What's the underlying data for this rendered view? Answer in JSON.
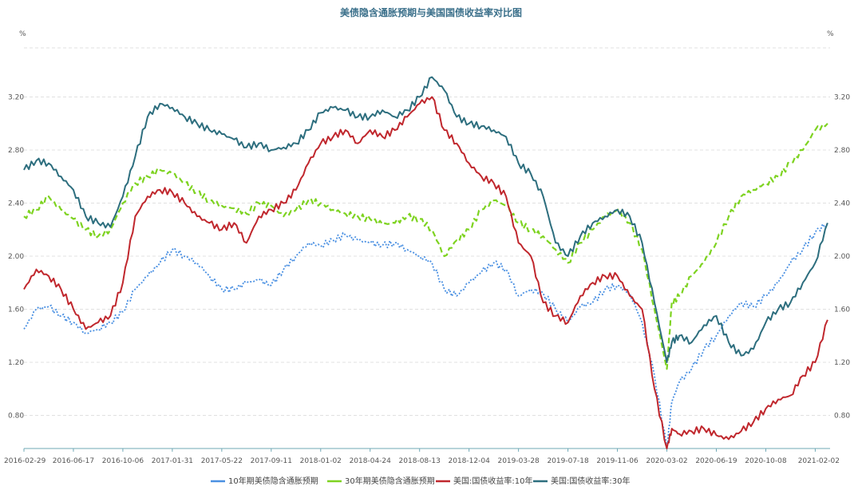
{
  "chart_data": {
    "type": "line",
    "title": "美债隐含通胀预期与美国国债收益率对比图",
    "y_unit_left": "%",
    "y_unit_right": "%",
    "ylim": [
      0.55,
      3.6
    ],
    "yticks": [
      0.8,
      1.2,
      1.6,
      2.0,
      2.4,
      2.8,
      3.2
    ],
    "ytick_labels": [
      "0.80",
      "1.20",
      "1.60",
      "2.00",
      "2.40",
      "2.80",
      "3.20"
    ],
    "x_ticks": [
      "2016-02-29",
      "2016-06-17",
      "2016-10-06",
      "2017-01-31",
      "2017-05-22",
      "2017-09-11",
      "2018-01-02",
      "2018-04-24",
      "2018-08-13",
      "2018-12-04",
      "2019-03-28",
      "2019-07-18",
      "2019-11-06",
      "2020-03-02",
      "2020-06-19",
      "2020-10-08",
      "2021-02-02"
    ],
    "grid": "horizontal-dashed",
    "legend_position": "bottom",
    "x_domain": [
      0,
      16.3
    ],
    "series": [
      {
        "name": "10年期美债隐含通胀预期",
        "color": "#4a90e2",
        "style": "dotted",
        "x": [
          0,
          0.25,
          0.5,
          0.75,
          1.0,
          1.25,
          1.5,
          1.75,
          2.0,
          2.25,
          2.5,
          2.75,
          3.0,
          3.25,
          3.5,
          3.75,
          4.0,
          4.25,
          4.5,
          4.75,
          5.0,
          5.25,
          5.5,
          5.75,
          6.0,
          6.25,
          6.5,
          6.75,
          7.0,
          7.25,
          7.5,
          7.75,
          8.0,
          8.25,
          8.5,
          8.75,
          9.0,
          9.25,
          9.5,
          9.75,
          10.0,
          10.25,
          10.5,
          10.75,
          11.0,
          11.25,
          11.5,
          11.75,
          12.0,
          12.25,
          12.5,
          12.75,
          13.0,
          13.1,
          13.25,
          13.5,
          13.75,
          14.0,
          14.25,
          14.5,
          14.75,
          15.0,
          15.25,
          15.5,
          15.75,
          16.0,
          16.25
        ],
        "values": [
          1.45,
          1.6,
          1.62,
          1.55,
          1.5,
          1.42,
          1.45,
          1.5,
          1.58,
          1.75,
          1.85,
          1.95,
          2.05,
          2.0,
          1.95,
          1.85,
          1.75,
          1.75,
          1.8,
          1.82,
          1.78,
          1.9,
          2.0,
          2.1,
          2.08,
          2.12,
          2.16,
          2.12,
          2.1,
          2.08,
          2.1,
          2.05,
          2.0,
          1.95,
          1.75,
          1.7,
          1.8,
          1.88,
          1.95,
          1.9,
          1.7,
          1.75,
          1.72,
          1.6,
          1.5,
          1.62,
          1.65,
          1.75,
          1.78,
          1.72,
          1.5,
          1.1,
          0.55,
          0.9,
          1.05,
          1.15,
          1.3,
          1.4,
          1.55,
          1.65,
          1.62,
          1.7,
          1.8,
          1.95,
          2.05,
          2.18,
          2.25
        ]
      },
      {
        "name": "30年期美债隐含通胀预期",
        "color": "#7ed321",
        "style": "dashed",
        "x": [
          0,
          0.25,
          0.5,
          0.75,
          1.0,
          1.25,
          1.5,
          1.75,
          2.0,
          2.25,
          2.5,
          2.75,
          3.0,
          3.25,
          3.5,
          3.75,
          4.0,
          4.25,
          4.5,
          4.75,
          5.0,
          5.25,
          5.5,
          5.75,
          6.0,
          6.25,
          6.5,
          6.75,
          7.0,
          7.25,
          7.5,
          7.75,
          8.0,
          8.25,
          8.5,
          8.75,
          9.0,
          9.25,
          9.5,
          9.75,
          10.0,
          10.25,
          10.5,
          10.75,
          11.0,
          11.25,
          11.5,
          11.75,
          12.0,
          12.25,
          12.5,
          12.75,
          13.0,
          13.1,
          13.25,
          13.5,
          13.75,
          14.0,
          14.25,
          14.5,
          14.75,
          15.0,
          15.25,
          15.5,
          15.75,
          16.0,
          16.25
        ],
        "values": [
          2.3,
          2.35,
          2.45,
          2.35,
          2.28,
          2.2,
          2.15,
          2.2,
          2.4,
          2.55,
          2.6,
          2.65,
          2.62,
          2.55,
          2.48,
          2.42,
          2.38,
          2.36,
          2.32,
          2.4,
          2.38,
          2.3,
          2.35,
          2.42,
          2.4,
          2.35,
          2.32,
          2.3,
          2.28,
          2.24,
          2.25,
          2.3,
          2.28,
          2.2,
          2.0,
          2.12,
          2.2,
          2.35,
          2.42,
          2.38,
          2.25,
          2.2,
          2.15,
          2.05,
          1.95,
          2.1,
          2.2,
          2.3,
          2.35,
          2.25,
          2.05,
          1.6,
          1.15,
          1.65,
          1.7,
          1.85,
          1.95,
          2.1,
          2.3,
          2.45,
          2.5,
          2.55,
          2.6,
          2.7,
          2.8,
          2.95,
          3.0
        ]
      },
      {
        "name": "美国:国债收益率:10年",
        "color": "#c0272d",
        "style": "solid",
        "x": [
          0,
          0.25,
          0.5,
          0.75,
          1.0,
          1.25,
          1.5,
          1.75,
          2.0,
          2.25,
          2.5,
          2.75,
          3.0,
          3.25,
          3.5,
          3.75,
          4.0,
          4.25,
          4.5,
          4.75,
          5.0,
          5.25,
          5.5,
          5.75,
          6.0,
          6.25,
          6.5,
          6.75,
          7.0,
          7.25,
          7.5,
          7.75,
          8.0,
          8.25,
          8.5,
          8.75,
          9.0,
          9.25,
          9.5,
          9.75,
          10.0,
          10.25,
          10.5,
          10.75,
          11.0,
          11.25,
          11.5,
          11.75,
          12.0,
          12.25,
          12.5,
          12.75,
          13.0,
          13.1,
          13.25,
          13.5,
          13.75,
          14.0,
          14.25,
          14.5,
          14.75,
          15.0,
          15.25,
          15.5,
          15.75,
          16.0,
          16.25
        ],
        "values": [
          1.75,
          1.9,
          1.85,
          1.75,
          1.6,
          1.45,
          1.5,
          1.55,
          1.8,
          2.3,
          2.45,
          2.5,
          2.48,
          2.4,
          2.3,
          2.25,
          2.2,
          2.25,
          2.1,
          2.3,
          2.35,
          2.4,
          2.5,
          2.7,
          2.85,
          2.9,
          2.95,
          2.85,
          2.95,
          2.9,
          2.95,
          3.05,
          3.15,
          3.2,
          2.95,
          2.85,
          2.7,
          2.6,
          2.55,
          2.45,
          2.1,
          2.0,
          1.65,
          1.55,
          1.5,
          1.7,
          1.8,
          1.85,
          1.85,
          1.7,
          1.6,
          1.0,
          0.55,
          0.7,
          0.66,
          0.68,
          0.7,
          0.65,
          0.62,
          0.68,
          0.75,
          0.85,
          0.92,
          0.95,
          1.1,
          1.2,
          1.52
        ]
      },
      {
        "name": "美国:国债收益率:30年",
        "color": "#2d6e7e",
        "style": "solid",
        "x": [
          0,
          0.25,
          0.5,
          0.75,
          1.0,
          1.25,
          1.5,
          1.75,
          2.0,
          2.25,
          2.5,
          2.75,
          3.0,
          3.25,
          3.5,
          3.75,
          4.0,
          4.25,
          4.5,
          4.75,
          5.0,
          5.25,
          5.5,
          5.75,
          6.0,
          6.25,
          6.5,
          6.75,
          7.0,
          7.25,
          7.5,
          7.75,
          8.0,
          8.25,
          8.5,
          8.75,
          9.0,
          9.25,
          9.5,
          9.75,
          10.0,
          10.25,
          10.5,
          10.75,
          11.0,
          11.25,
          11.5,
          11.75,
          12.0,
          12.25,
          12.5,
          12.75,
          13.0,
          13.1,
          13.25,
          13.5,
          13.75,
          14.0,
          14.25,
          14.5,
          14.75,
          15.0,
          15.25,
          15.5,
          15.75,
          16.0,
          16.25
        ],
        "values": [
          2.65,
          2.72,
          2.7,
          2.6,
          2.5,
          2.3,
          2.25,
          2.22,
          2.45,
          2.75,
          3.05,
          3.15,
          3.12,
          3.05,
          3.0,
          2.95,
          2.92,
          2.88,
          2.82,
          2.85,
          2.8,
          2.82,
          2.85,
          2.95,
          3.08,
          3.12,
          3.1,
          3.05,
          3.05,
          3.1,
          3.05,
          3.1,
          3.2,
          3.35,
          3.25,
          3.05,
          3.0,
          2.98,
          2.95,
          2.9,
          2.7,
          2.62,
          2.45,
          2.1,
          2.0,
          2.15,
          2.25,
          2.3,
          2.35,
          2.3,
          2.1,
          1.65,
          1.2,
          1.35,
          1.4,
          1.35,
          1.48,
          1.55,
          1.35,
          1.25,
          1.3,
          1.5,
          1.6,
          1.65,
          1.8,
          1.95,
          2.25
        ]
      }
    ]
  }
}
